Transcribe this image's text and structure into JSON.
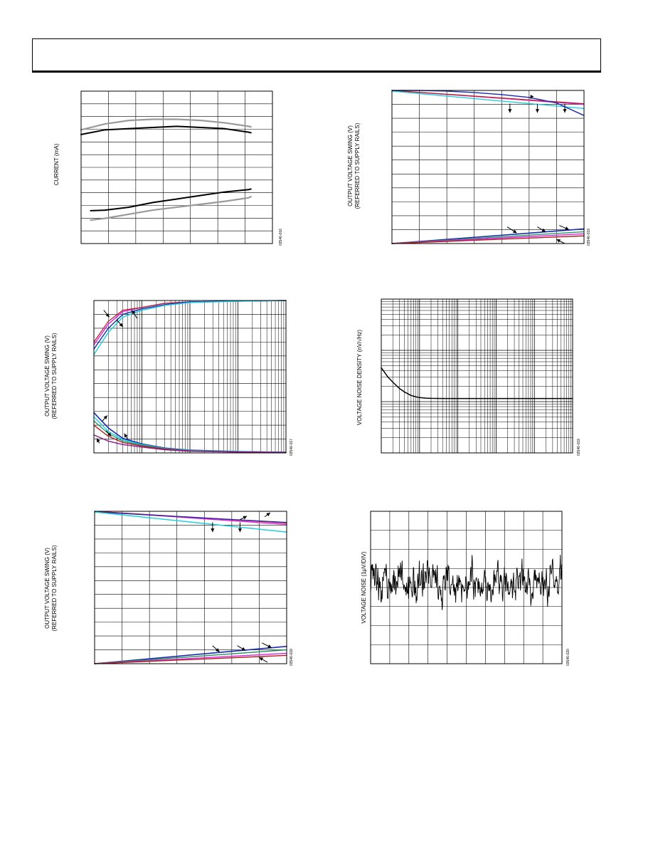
{
  "page": {
    "header": ""
  },
  "charts": [
    {
      "id": "fig-016",
      "figure_id": "03546-016",
      "chart_data": {
        "type": "line",
        "title": "",
        "xlabel": "",
        "ylabel": "CURRENT (mA)",
        "xlim": [
          0,
          8
        ],
        "ylim": [
          0,
          13
        ],
        "xticks": 7,
        "yticks": 12,
        "series": [
          {
            "color": "#9a9a9a",
            "width": 2.2,
            "x": [
              0.0,
              1,
              2,
              3,
              4,
              5,
              6,
              7,
              7.1
            ],
            "y": [
              9.7,
              10.2,
              10.5,
              10.6,
              10.6,
              10.5,
              10.3,
              10.0,
              9.95
            ]
          },
          {
            "color": "#000000",
            "width": 2.0,
            "x": [
              0.0,
              1,
              2,
              3,
              4,
              5,
              6,
              7,
              7.1
            ],
            "y": [
              9.3,
              9.7,
              9.8,
              9.9,
              10.0,
              9.9,
              9.8,
              9.5,
              9.45
            ]
          },
          {
            "color": "#000000",
            "width": 2.0,
            "x": [
              0.4,
              1,
              2,
              3,
              4,
              5,
              6,
              7,
              7.1
            ],
            "y": [
              2.8,
              2.85,
              3.1,
              3.5,
              3.8,
              4.1,
              4.4,
              4.6,
              4.65
            ]
          },
          {
            "color": "#9a9a9a",
            "width": 2.2,
            "x": [
              0.4,
              1,
              2,
              3,
              4,
              5,
              6,
              7,
              7.1
            ],
            "y": [
              2.0,
              2.15,
              2.5,
              2.85,
              3.1,
              3.35,
              3.6,
              3.9,
              4.0
            ]
          }
        ],
        "arrows": []
      }
    },
    {
      "id": "fig-019",
      "figure_id": "03546-019",
      "chart_data": {
        "type": "line",
        "title": "",
        "xlabel": "",
        "ylabel": "OUTPUT VOLTAGE SWING (V)\n(REFERRED TO SUPPLY RAILS)",
        "xlim": [
          0,
          7
        ],
        "ylim": [
          0,
          11
        ],
        "xticks": 7,
        "yticks": 11,
        "series": [
          {
            "color": "#e020e0",
            "width": 1.4,
            "x": [
              0,
              7
            ],
            "y": [
              11.0,
              10.0
            ]
          },
          {
            "color": "#b02020",
            "width": 1.2,
            "x": [
              0,
              7
            ],
            "y": [
              11.0,
              10.05
            ]
          },
          {
            "color": "#20d0e0",
            "width": 1.4,
            "x": [
              0,
              7
            ],
            "y": [
              10.95,
              9.7
            ]
          },
          {
            "color": "#1a2ab0",
            "width": 1.4,
            "x": [
              0,
              1,
              2,
              3,
              4,
              5,
              6,
              7
            ],
            "y": [
              11.0,
              11.0,
              10.95,
              10.85,
              10.7,
              10.5,
              10.1,
              9.2
            ]
          },
          {
            "color": "#1a2ab0",
            "width": 1.6,
            "x": [
              0,
              7
            ],
            "y": [
              0.0,
              1.05
            ]
          },
          {
            "color": "#20a060",
            "width": 1.4,
            "x": [
              0,
              7
            ],
            "y": [
              0.0,
              0.85
            ]
          },
          {
            "color": "#e020e0",
            "width": 1.4,
            "x": [
              0,
              7
            ],
            "y": [
              0.0,
              0.7
            ]
          },
          {
            "color": "#b02020",
            "width": 1.4,
            "x": [
              0,
              7
            ],
            "y": [
              0.0,
              0.55
            ]
          }
        ],
        "arrows": [
          [
            4.3,
            10.05,
            4.3,
            9.4
          ],
          [
            5.3,
            10.05,
            5.3,
            9.4
          ],
          [
            6.3,
            10.05,
            6.3,
            9.4
          ],
          [
            5.1,
            10.6,
            5.05,
            10.4
          ],
          [
            4.2,
            1.2,
            4.55,
            0.75
          ],
          [
            5.3,
            1.2,
            5.6,
            0.85
          ],
          [
            6.1,
            1.3,
            6.45,
            1.0
          ],
          [
            6.3,
            0.0,
            6.0,
            0.3
          ]
        ]
      }
    },
    {
      "id": "fig-017",
      "figure_id": "03546-017",
      "chart_data": {
        "type": "line",
        "title": "",
        "xlabel": "",
        "ylabel": "OUTPUT VOLTAGE SWING (V)\n(REFERRED TO SUPPLY RAILS)",
        "xscale": "log",
        "xlim": [
          1,
          10000
        ],
        "ylim": [
          0,
          11
        ],
        "yticks": 11,
        "series": [
          {
            "color": "#e020e0",
            "width": 1.4,
            "x": [
              1,
              2,
              4,
              10,
              30,
              100,
              1000,
              10000
            ],
            "y": [
              7.8,
              9.3,
              10.2,
              10.5,
              10.8,
              10.9,
              10.95,
              11.0
            ]
          },
          {
            "color": "#b02020",
            "width": 1.2,
            "x": [
              1,
              2,
              4,
              10,
              30,
              100,
              1000,
              10000
            ],
            "y": [
              8.0,
              9.5,
              10.3,
              10.5,
              10.8,
              10.9,
              10.95,
              11.0
            ]
          },
          {
            "color": "#1a2ab0",
            "width": 1.4,
            "x": [
              1,
              2,
              4,
              10,
              30,
              100,
              1000,
              10000
            ],
            "y": [
              7.5,
              9.0,
              10.0,
              10.4,
              10.7,
              10.9,
              10.95,
              11.0
            ]
          },
          {
            "color": "#20d0e0",
            "width": 1.5,
            "x": [
              1,
              2,
              4,
              10,
              30,
              100,
              1000,
              10000
            ],
            "y": [
              7.1,
              8.7,
              9.8,
              10.3,
              10.65,
              10.85,
              10.95,
              11.0
            ]
          },
          {
            "color": "#1a2ab0",
            "width": 1.6,
            "x": [
              1,
              2,
              4,
              10,
              30,
              100,
              1000,
              10000
            ],
            "y": [
              2.9,
              1.8,
              1.05,
              0.65,
              0.35,
              0.2,
              0.1,
              0.05
            ]
          },
          {
            "color": "#20d0e0",
            "width": 1.4,
            "x": [
              1,
              2,
              4,
              10,
              30,
              100,
              1000,
              10000
            ],
            "y": [
              2.6,
              1.55,
              0.95,
              0.6,
              0.32,
              0.18,
              0.09,
              0.05
            ]
          },
          {
            "color": "#209060",
            "width": 1.2,
            "x": [
              1,
              2,
              4,
              10,
              30,
              100,
              1000,
              10000
            ],
            "y": [
              2.3,
              1.4,
              0.85,
              0.55,
              0.3,
              0.16,
              0.08,
              0.04
            ]
          },
          {
            "color": "#b02020",
            "width": 1.4,
            "x": [
              1,
              2,
              4,
              10,
              30,
              100,
              1000,
              10000
            ],
            "y": [
              2.0,
              1.2,
              0.75,
              0.5,
              0.27,
              0.14,
              0.07,
              0.04
            ]
          },
          {
            "color": "#8a1a8a",
            "width": 1.4,
            "x": [
              1,
              2,
              4,
              10,
              30,
              100,
              1000,
              10000
            ],
            "y": [
              1.3,
              0.85,
              0.6,
              0.42,
              0.23,
              0.12,
              0.06,
              0.03
            ]
          }
        ],
        "arrows": [
          [
            1.6,
            10.3,
            2.1,
            9.8
          ],
          [
            3.0,
            9.6,
            4.0,
            9.1
          ],
          [
            8.0,
            9.7,
            6.2,
            10.3
          ],
          [
            1.5,
            2.3,
            1.9,
            2.7
          ],
          [
            1.8,
            1.6,
            2.3,
            1.2
          ],
          [
            5.0,
            1.0,
            4.3,
            1.4
          ],
          [
            1.3,
            0.7,
            1.15,
            1.05
          ]
        ]
      }
    },
    {
      "id": "fig-019b",
      "figure_id": "03546-019",
      "chart_data": {
        "type": "line",
        "title": "",
        "xlabel": "",
        "ylabel": "VOLTAGE NOISE DENSITY (nV/√Hz)",
        "xscale": "log",
        "yscale": "log",
        "xlim": [
          1,
          100000
        ],
        "ylim": [
          1,
          1000
        ],
        "series": [
          {
            "color": "#000000",
            "width": 1.5,
            "x": [
              1,
              1.5,
              2,
              3,
              4,
              6,
              8,
              10,
              15,
              20,
              40,
              100,
              1000,
              100000
            ],
            "y": [
              46,
              30,
              24,
              18,
              15.5,
              13.2,
              12.4,
              12.0,
              11.7,
              11.6,
              11.5,
              11.5,
              11.5,
              11.5
            ]
          }
        ],
        "arrows": []
      }
    },
    {
      "id": "fig-018",
      "figure_id": "03546-018",
      "chart_data": {
        "type": "line",
        "title": "",
        "xlabel": "",
        "ylabel": "OUTPUT VOLTAGE SWING (V)\n(REFERRED TO SUPPLY RAILS)",
        "xlim": [
          0,
          7
        ],
        "ylim": [
          0,
          11
        ],
        "xticks": 7,
        "yticks": 11,
        "series": [
          {
            "color": "#e020e0",
            "width": 1.4,
            "x": [
              0,
              7
            ],
            "y": [
              11.0,
              10.05
            ]
          },
          {
            "color": "#b02020",
            "width": 1.2,
            "x": [
              0,
              7
            ],
            "y": [
              11.0,
              10.15
            ]
          },
          {
            "color": "#1a2ab0",
            "width": 1.2,
            "x": [
              0,
              7
            ],
            "y": [
              10.95,
              10.2
            ]
          },
          {
            "color": "#20d0e0",
            "width": 1.5,
            "x": [
              0,
              7
            ],
            "y": [
              10.95,
              9.5
            ]
          },
          {
            "color": "#1a2ab0",
            "width": 1.6,
            "x": [
              0,
              7
            ],
            "y": [
              0.0,
              1.25
            ]
          },
          {
            "color": "#209060",
            "width": 1.4,
            "x": [
              0,
              7
            ],
            "y": [
              0.0,
              1.0
            ]
          },
          {
            "color": "#e020e0",
            "width": 1.4,
            "x": [
              0,
              7
            ],
            "y": [
              0.0,
              0.75
            ]
          },
          {
            "color": "#b02020",
            "width": 1.4,
            "x": [
              0,
              7
            ],
            "y": [
              0.0,
              0.6
            ]
          }
        ],
        "arrows": [
          [
            4.3,
            10.2,
            4.3,
            9.5
          ],
          [
            5.3,
            10.2,
            5.3,
            9.5
          ],
          [
            5.3,
            10.4,
            5.55,
            10.65
          ],
          [
            6.2,
            10.6,
            6.4,
            10.9
          ],
          [
            4.3,
            1.3,
            4.55,
            0.85
          ],
          [
            5.2,
            1.3,
            5.5,
            0.95
          ],
          [
            6.1,
            1.5,
            6.45,
            1.15
          ],
          [
            6.3,
            0.1,
            6.0,
            0.45
          ]
        ]
      }
    },
    {
      "id": "fig-020",
      "figure_id": "03546-020",
      "chart_data": {
        "type": "line",
        "title": "",
        "xlabel": "",
        "ylabel": "VOLTAGE NOISE (1μV/DIV)",
        "xlim": [
          0,
          10
        ],
        "ylim": [
          -4,
          4
        ],
        "xticks": 10,
        "yticks": 8,
        "noise": {
          "mean": 0.25,
          "amplitude": 0.9,
          "points": 480,
          "seed": 20
        },
        "series": [],
        "arrows": []
      }
    }
  ]
}
